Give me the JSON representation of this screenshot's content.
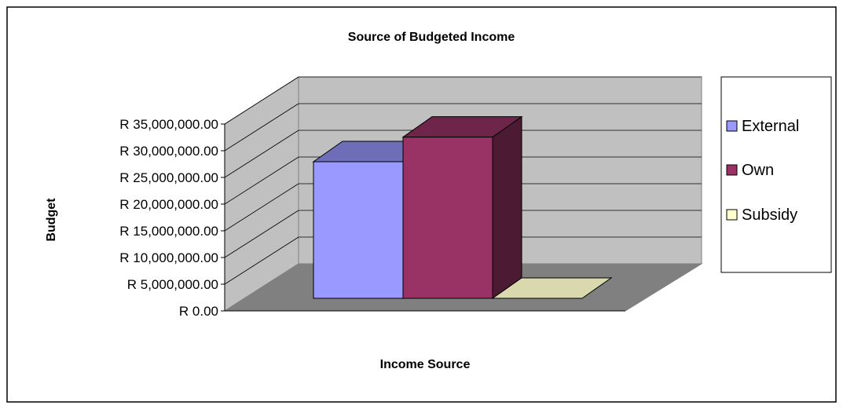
{
  "chart_data": {
    "type": "bar",
    "title": "Source of Budgeted Income",
    "xlabel": "Income Source",
    "ylabel": "Budget",
    "ylim": [
      0,
      35000000
    ],
    "yticks": [
      "R 0.00",
      "R 5,000,000.00",
      "R 10,000,000.00",
      "R 15,000,000.00",
      "R 20,000,000.00",
      "R 25,000,000.00",
      "R 30,000,000.00",
      "R 35,000,000.00"
    ],
    "categories": [
      ""
    ],
    "series": [
      {
        "name": "External",
        "values": [
          25000000
        ],
        "color": "#9999ff"
      },
      {
        "name": "Own",
        "values": [
          29500000
        ],
        "color": "#993366"
      },
      {
        "name": "Subsidy",
        "values": [
          0
        ],
        "color": "#ffffcc"
      }
    ],
    "grid": true,
    "legend": "right",
    "style": "3d-clustered"
  }
}
